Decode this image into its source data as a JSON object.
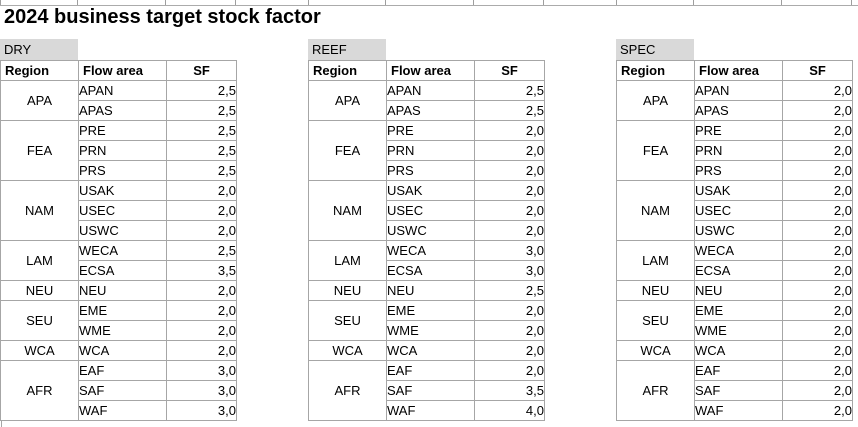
{
  "title": "2024 business target stock factor",
  "headers": [
    "Region",
    "Flow area",
    "SF"
  ],
  "colors": {
    "label_fill": "#d9d9d9",
    "grid_border": "#a6a6a6"
  },
  "tables": [
    {
      "label": "DRY",
      "groups": [
        {
          "region": "APA",
          "rows": [
            {
              "area": "APAN",
              "sf": "2,5"
            },
            {
              "area": "APAS",
              "sf": "2,5"
            }
          ]
        },
        {
          "region": "FEA",
          "rows": [
            {
              "area": "PRE",
              "sf": "2,5"
            },
            {
              "area": "PRN",
              "sf": "2,5"
            },
            {
              "area": "PRS",
              "sf": "2,5"
            }
          ]
        },
        {
          "region": "NAM",
          "rows": [
            {
              "area": "USAK",
              "sf": "2,0"
            },
            {
              "area": "USEC",
              "sf": "2,0"
            },
            {
              "area": "USWC",
              "sf": "2,0"
            }
          ]
        },
        {
          "region": "LAM",
          "rows": [
            {
              "area": "WECA",
              "sf": "2,5"
            },
            {
              "area": "ECSA",
              "sf": "3,5"
            }
          ]
        },
        {
          "region": "NEU",
          "rows": [
            {
              "area": "NEU",
              "sf": "2,0"
            }
          ]
        },
        {
          "region": "SEU",
          "rows": [
            {
              "area": "EME",
              "sf": "2,0"
            },
            {
              "area": "WME",
              "sf": "2,0"
            }
          ]
        },
        {
          "region": "WCA",
          "rows": [
            {
              "area": "WCA",
              "sf": "2,0"
            }
          ]
        },
        {
          "region": "AFR",
          "rows": [
            {
              "area": "EAF",
              "sf": "3,0"
            },
            {
              "area": "SAF",
              "sf": "3,0"
            },
            {
              "area": "WAF",
              "sf": "3,0"
            }
          ]
        }
      ]
    },
    {
      "label": "REEF",
      "groups": [
        {
          "region": "APA",
          "rows": [
            {
              "area": "APAN",
              "sf": "2,5"
            },
            {
              "area": "APAS",
              "sf": "2,5"
            }
          ]
        },
        {
          "region": "FEA",
          "rows": [
            {
              "area": "PRE",
              "sf": "2,0"
            },
            {
              "area": "PRN",
              "sf": "2,0"
            },
            {
              "area": "PRS",
              "sf": "2,0"
            }
          ]
        },
        {
          "region": "NAM",
          "rows": [
            {
              "area": "USAK",
              "sf": "2,0"
            },
            {
              "area": "USEC",
              "sf": "2,0"
            },
            {
              "area": "USWC",
              "sf": "2,0"
            }
          ]
        },
        {
          "region": "LAM",
          "rows": [
            {
              "area": "WECA",
              "sf": "3,0"
            },
            {
              "area": "ECSA",
              "sf": "3,0"
            }
          ]
        },
        {
          "region": "NEU",
          "rows": [
            {
              "area": "NEU",
              "sf": "2,5"
            }
          ]
        },
        {
          "region": "SEU",
          "rows": [
            {
              "area": "EME",
              "sf": "2,0"
            },
            {
              "area": "WME",
              "sf": "2,0"
            }
          ]
        },
        {
          "region": "WCA",
          "rows": [
            {
              "area": "WCA",
              "sf": "2,0"
            }
          ]
        },
        {
          "region": "AFR",
          "rows": [
            {
              "area": "EAF",
              "sf": "2,0"
            },
            {
              "area": "SAF",
              "sf": "3,5"
            },
            {
              "area": "WAF",
              "sf": "4,0"
            }
          ]
        }
      ]
    },
    {
      "label": "SPEC",
      "groups": [
        {
          "region": "APA",
          "rows": [
            {
              "area": "APAN",
              "sf": "2,0"
            },
            {
              "area": "APAS",
              "sf": "2,0"
            }
          ]
        },
        {
          "region": "FEA",
          "rows": [
            {
              "area": "PRE",
              "sf": "2,0"
            },
            {
              "area": "PRN",
              "sf": "2,0"
            },
            {
              "area": "PRS",
              "sf": "2,0"
            }
          ]
        },
        {
          "region": "NAM",
          "rows": [
            {
              "area": "USAK",
              "sf": "2,0"
            },
            {
              "area": "USEC",
              "sf": "2,0"
            },
            {
              "area": "USWC",
              "sf": "2,0"
            }
          ]
        },
        {
          "region": "LAM",
          "rows": [
            {
              "area": "WECA",
              "sf": "2,0"
            },
            {
              "area": "ECSA",
              "sf": "2,0"
            }
          ]
        },
        {
          "region": "NEU",
          "rows": [
            {
              "area": "NEU",
              "sf": "2,0"
            }
          ]
        },
        {
          "region": "SEU",
          "rows": [
            {
              "area": "EME",
              "sf": "2,0"
            },
            {
              "area": "WME",
              "sf": "2,0"
            }
          ]
        },
        {
          "region": "WCA",
          "rows": [
            {
              "area": "WCA",
              "sf": "2,0"
            }
          ]
        },
        {
          "region": "AFR",
          "rows": [
            {
              "area": "EAF",
              "sf": "2,0"
            },
            {
              "area": "SAF",
              "sf": "2,0"
            },
            {
              "area": "WAF",
              "sf": "2,0"
            }
          ]
        }
      ]
    }
  ]
}
